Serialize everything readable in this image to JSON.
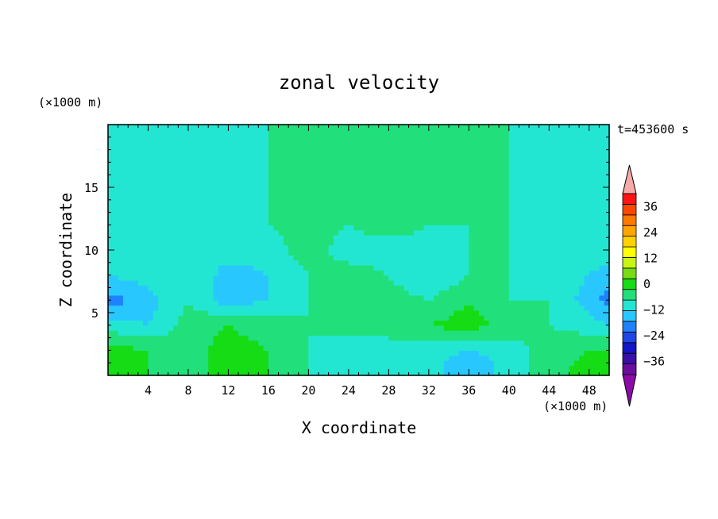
{
  "chart_data": {
    "type": "heatmap",
    "title": "zonal velocity",
    "xlabel": "X coordinate",
    "ylabel": "Z coordinate",
    "x_unit": "(×1000 m)",
    "y_unit": "(×1000 m)",
    "time_label": "t=453600 s",
    "xlim": [
      0,
      50
    ],
    "ylim": [
      0,
      20
    ],
    "x_ticks": [
      4,
      8,
      12,
      16,
      20,
      24,
      28,
      32,
      36,
      40,
      44,
      48
    ],
    "y_ticks": [
      5,
      10,
      15
    ],
    "colorbar": {
      "min": -42,
      "max": 42,
      "step": 6,
      "tick_labels": [
        "36",
        "24",
        "12",
        "0",
        "−12",
        "−24",
        "−36"
      ],
      "tick_values": [
        36,
        24,
        12,
        0,
        -12,
        -24,
        -36
      ],
      "colors": [
        "#6a0d9e",
        "#3a0fa8",
        "#1414c8",
        "#1e46e6",
        "#1e82ff",
        "#28c8ff",
        "#23e6d2",
        "#21e07c",
        "#15dc15",
        "#78dc14",
        "#c8f514",
        "#ffff00",
        "#ffd200",
        "#ffa500",
        "#ff7800",
        "#ff4600",
        "#ff1414"
      ],
      "under_color": "#8c0aa8",
      "over_color": "#f7a8a8"
    },
    "field_samples": {
      "x": [
        0,
        4,
        8,
        12,
        16,
        20,
        24,
        28,
        32,
        36,
        40,
        44,
        48,
        50
      ],
      "z": [
        0.5,
        2,
        4,
        6,
        8,
        10,
        12,
        14,
        16,
        18,
        19.5
      ],
      "u": [
        [
          12,
          6,
          3,
          9,
          6,
          0,
          -3,
          0,
          -3,
          -12,
          -3,
          3,
          9,
          12
        ],
        [
          9,
          6,
          3,
          9,
          6,
          0,
          -6,
          -3,
          -3,
          -6,
          -3,
          3,
          6,
          6
        ],
        [
          -3,
          -6,
          3,
          6,
          3,
          0,
          3,
          3,
          6,
          9,
          3,
          0,
          -3,
          -6
        ],
        [
          -15,
          -9,
          0,
          -9,
          -6,
          0,
          6,
          3,
          0,
          6,
          0,
          0,
          -9,
          -15
        ],
        [
          -6,
          -3,
          0,
          -9,
          -6,
          0,
          3,
          0,
          -6,
          0,
          0,
          -3,
          -6,
          -9
        ],
        [
          -3,
          0,
          -3,
          -3,
          -3,
          3,
          -3,
          -3,
          -3,
          0,
          0,
          -3,
          -3,
          -3
        ],
        [
          -3,
          -3,
          -3,
          -6,
          0,
          3,
          0,
          3,
          0,
          0,
          0,
          -3,
          -3,
          -3
        ],
        [
          -3,
          -6,
          -3,
          -3,
          0,
          0,
          0,
          3,
          0,
          0,
          0,
          -3,
          -3,
          -3
        ],
        [
          -3,
          -6,
          -3,
          -6,
          0,
          0,
          3,
          3,
          6,
          0,
          0,
          -3,
          -3,
          -3
        ],
        [
          -3,
          -6,
          -3,
          -3,
          0,
          0,
          3,
          3,
          6,
          0,
          0,
          -3,
          -3,
          -3
        ],
        [
          -3,
          -6,
          -3,
          -3,
          0,
          0,
          3,
          3,
          3,
          0,
          0,
          -3,
          -3,
          -3
        ]
      ]
    }
  }
}
